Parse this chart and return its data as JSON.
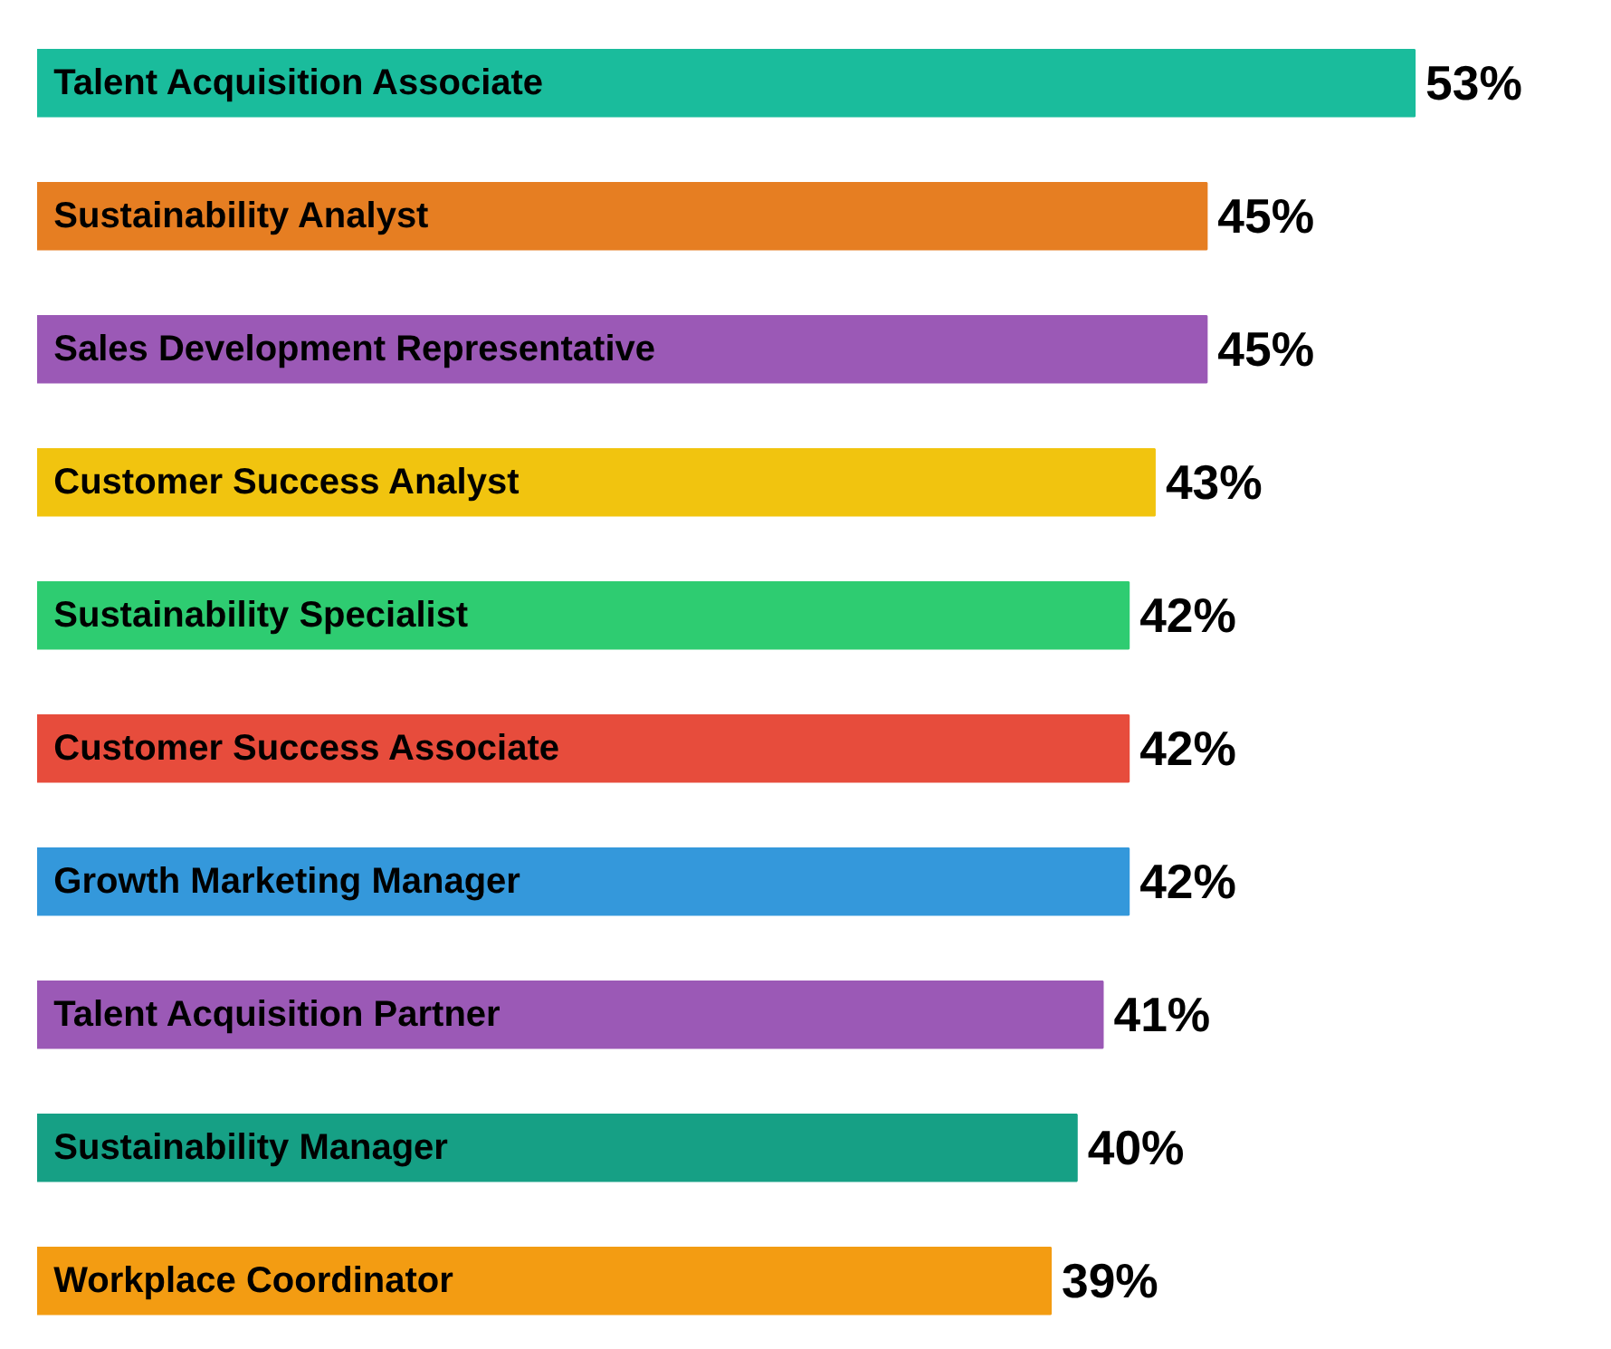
{
  "chart_data": {
    "type": "bar",
    "orientation": "horizontal",
    "categories": [
      "Talent Acquisition Associate",
      "Sustainability Analyst",
      "Sales Development Representative",
      "Customer Success Analyst",
      "Sustainability Specialist",
      "Customer Success Associate",
      "Growth Marketing Manager",
      "Talent Acquisition Partner",
      "Sustainability Manager",
      "Workplace Coordinator"
    ],
    "values": [
      53,
      45,
      45,
      43,
      42,
      42,
      42,
      41,
      40,
      39
    ],
    "colors": [
      "#1abc9c",
      "#e67e22",
      "#9b59b6",
      "#f1c40f",
      "#2ecc71",
      "#e74c3c",
      "#3498db",
      "#9b59b6",
      "#16a085",
      "#f39c12"
    ],
    "value_labels": [
      "53%",
      "45%",
      "45%",
      "43%",
      "42%",
      "42%",
      "42%",
      "41%",
      "40%",
      "39%"
    ],
    "grid": false,
    "tick_labels": false
  }
}
